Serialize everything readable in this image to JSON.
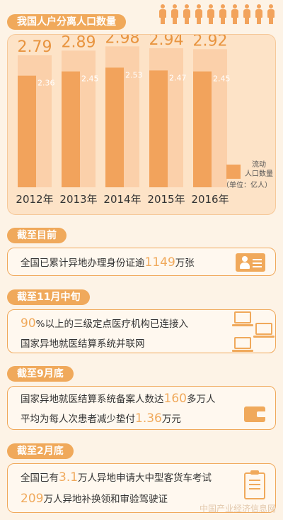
{
  "chart_data": {
    "type": "bar",
    "title": "我国人户分离人口数量",
    "categories": [
      "2012年",
      "2013年",
      "2014年",
      "2015年",
      "2016年"
    ],
    "series": [
      {
        "name": "人户分离人口",
        "values": [
          2.79,
          2.89,
          2.98,
          2.94,
          2.92
        ]
      },
      {
        "name": "流动人口数量",
        "values": [
          2.36,
          2.45,
          2.53,
          2.47,
          2.45
        ]
      }
    ],
    "value_labels_outer": [
      "2.79",
      "2.89",
      "2.98",
      "2.94",
      "2.92"
    ],
    "value_labels_inner": [
      "2.36",
      "2.45",
      "2.53",
      "2.47",
      "2.45"
    ],
    "legend": {
      "label_line1": "流动",
      "label_line2": "人口数量",
      "unit": "（单位：亿人）",
      "placement": "bottom-right"
    },
    "ylim": [
      0,
      3.0
    ],
    "grid": false
  },
  "colors": {
    "outer": "#fbd0aa",
    "inner": "#f2a35c",
    "panel": "#fde3c7",
    "accent": "#f0a95b"
  },
  "sections": [
    {
      "heading": "截至目前",
      "line1": {
        "pre": "全国已累计异地办理身份证逾",
        "num": "1149",
        "post": "万张"
      }
    },
    {
      "heading": "截至11月中旬",
      "line1": {
        "num": "90",
        "post": "%以上的三级定点医疗机构已连接入"
      },
      "line2": "国家异地就医结算系统并联网"
    },
    {
      "heading": "截至9月底",
      "line1": {
        "pre": "国家异地就医结算系统备案人数达",
        "num": "160",
        "post": "多万人"
      },
      "line2": {
        "pre": "平均为每人次患者减少垫付",
        "num": "1.36",
        "post": "万元"
      }
    },
    {
      "heading": "截至2月底",
      "line1": {
        "pre": "全国已有",
        "num": "3.1",
        "post": "万人异地申请大中型客货车考试"
      },
      "line2": {
        "num": "209",
        "post": "万人异地补换领和审验驾驶证"
      }
    }
  ],
  "icons": [
    "person-icon",
    "id-card-icon",
    "computer-network-icon",
    "wallet-icon",
    "clipboard-icon"
  ],
  "watermark": "中国产业经济信息网"
}
